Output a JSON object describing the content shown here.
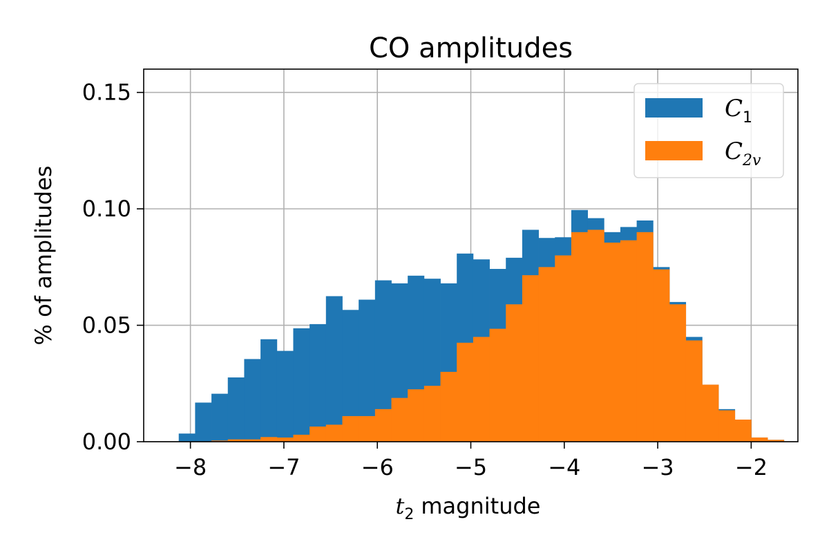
{
  "chart_data": {
    "type": "bar",
    "title": "CO amplitudes",
    "xlabel": "magnitude",
    "xlabel_symbol": "t",
    "xlabel_subscript": "2",
    "ylabel": "% of amplitudes",
    "xlim": [
      -8.5,
      -1.5
    ],
    "ylim": [
      0,
      0.16
    ],
    "xticks": [
      -8,
      -7,
      -6,
      -5,
      -4,
      -3,
      -2
    ],
    "xtick_labels": [
      "−8",
      "−7",
      "−6",
      "−5",
      "−4",
      "−3",
      "−2"
    ],
    "yticks": [
      0,
      0.05,
      0.1,
      0.15
    ],
    "ytick_labels": [
      "0.00",
      "0.05",
      "0.10",
      "0.15"
    ],
    "grid": true,
    "legend_position": "top-right",
    "bin_edges": [
      -8.125,
      -7.95,
      -7.775,
      -7.6,
      -7.425,
      -7.25,
      -7.075,
      -6.9,
      -6.725,
      -6.55,
      -6.375,
      -6.2,
      -6.025,
      -5.85,
      -5.675,
      -5.5,
      -5.325,
      -5.15,
      -4.975,
      -4.8,
      -4.625,
      -4.45,
      -4.275,
      -4.1,
      -3.925,
      -3.75,
      -3.575,
      -3.4,
      -3.225,
      -3.05,
      -2.875,
      -2.7,
      -2.525,
      -2.35,
      -2.175,
      -2.0,
      -1.825,
      -1.65
    ],
    "series": [
      {
        "name": "C",
        "name_subscript": "1",
        "color": "#1f77b4",
        "values": [
          0.0035,
          0.0168,
          0.0206,
          0.0276,
          0.0355,
          0.044,
          0.039,
          0.0487,
          0.0505,
          0.0625,
          0.0566,
          0.061,
          0.0693,
          0.068,
          0.0713,
          0.07,
          0.068,
          0.0808,
          0.0783,
          0.0742,
          0.079,
          0.091,
          0.0875,
          0.0878,
          0.0995,
          0.096,
          0.09,
          0.0922,
          0.095,
          0.075,
          0.06,
          0.045,
          0.0245,
          0.014,
          0.0095,
          0.0018,
          0.0008
        ]
      },
      {
        "name": "C",
        "name_subscript": "2v",
        "color": "#ff7f0e",
        "values": [
          0.0,
          0.0,
          0.0005,
          0.001,
          0.001,
          0.002,
          0.0018,
          0.003,
          0.0065,
          0.0073,
          0.011,
          0.011,
          0.014,
          0.0188,
          0.0225,
          0.024,
          0.03,
          0.0425,
          0.045,
          0.0485,
          0.059,
          0.0715,
          0.075,
          0.08,
          0.09,
          0.091,
          0.0855,
          0.0865,
          0.09,
          0.074,
          0.059,
          0.0435,
          0.0245,
          0.0135,
          0.0095,
          0.0018,
          0.0008
        ]
      }
    ]
  }
}
